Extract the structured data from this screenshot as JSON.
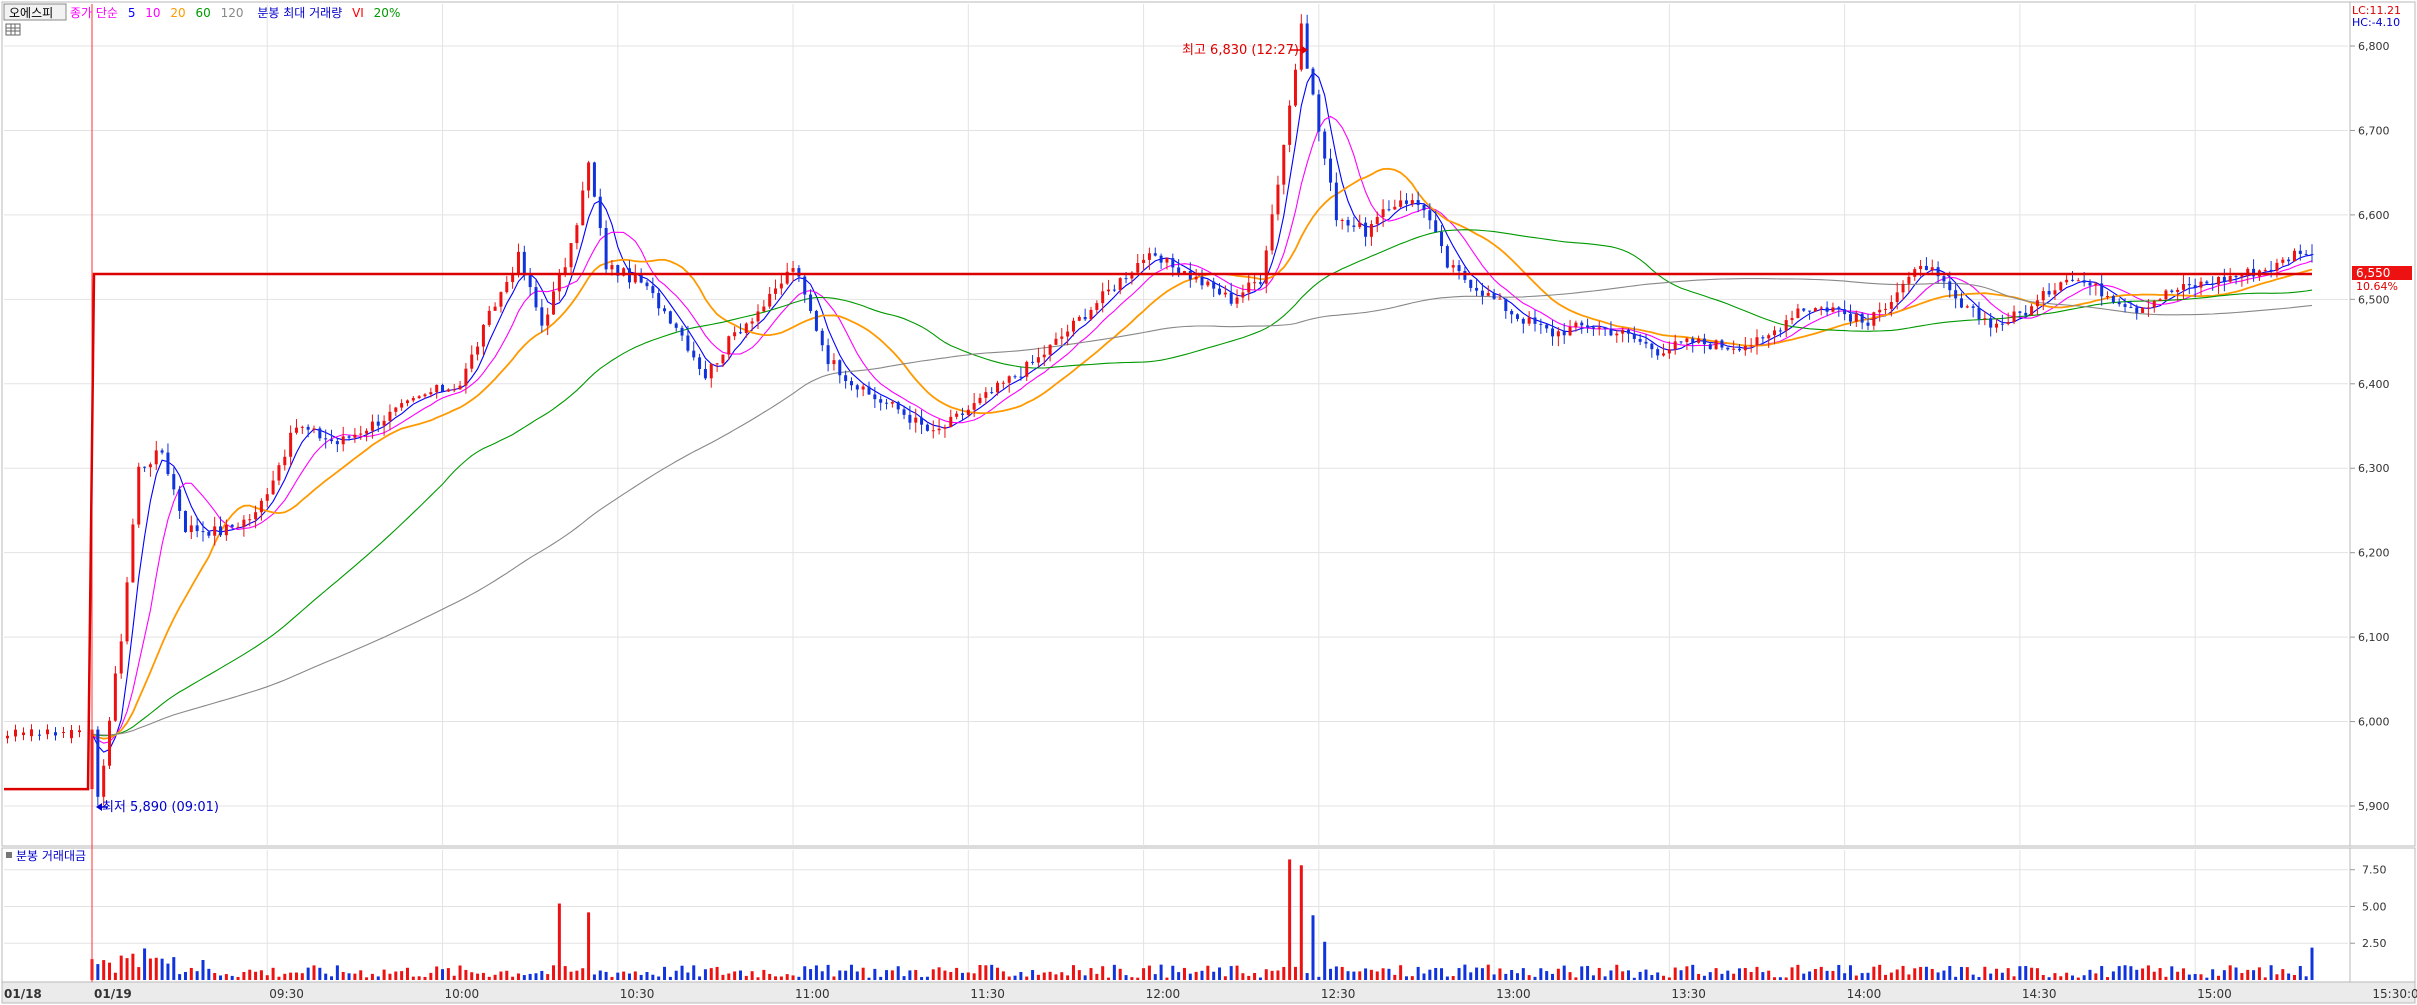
{
  "header": {
    "symbol": "오에스피",
    "ma_label": "종가 단순",
    "ma_periods": [
      "5",
      "10",
      "20",
      "60",
      "120"
    ],
    "ma_colors": [
      "#0000ff",
      "#ff00ff",
      "#ff9900",
      "#009900",
      "#888888"
    ],
    "volume_label": "분봉 최대 거래량",
    "vi_label": "VI",
    "vi_value": "20%"
  },
  "corner": {
    "lc": "LC:11.21",
    "hc": "HC:-4.10"
  },
  "current": {
    "price": "6,550",
    "change": "10.64%"
  },
  "annotations": {
    "high": "최고 6,830 (12:27)",
    "low": "최저 5,890 (09:01)"
  },
  "volume_panel": {
    "title": "분봉 거래대금",
    "ticks": [
      "7.50",
      "5.00",
      "2.50"
    ]
  },
  "x_axis": {
    "labels": [
      "01/18",
      "01/19",
      "09:30",
      "10:00",
      "10:30",
      "11:00",
      "11:30",
      "12:00",
      "12:30",
      "13:00",
      "13:30",
      "14:00",
      "14:30",
      "15:00",
      "15:30:00"
    ]
  },
  "chart_data": {
    "type": "candlestick",
    "title": "",
    "y_axis_ticks": [
      "6,800",
      "6,700",
      "6,600",
      "6,500",
      "6,400",
      "6,300",
      "6,200",
      "6,100",
      "6,000",
      "5,900"
    ],
    "ylim": [
      5860,
      6880
    ],
    "prev_close": 5920,
    "vi_price": 6530,
    "high": 6830,
    "low": 5890,
    "last": 6550,
    "price_path": [
      [
        "09:00",
        5985
      ],
      [
        "09:01",
        5905
      ],
      [
        "09:05",
        6100
      ],
      [
        "09:08",
        6300
      ],
      [
        "09:12",
        6320
      ],
      [
        "09:16",
        6230
      ],
      [
        "09:22",
        6225
      ],
      [
        "09:28",
        6245
      ],
      [
        "09:35",
        6350
      ],
      [
        "09:42",
        6330
      ],
      [
        "09:50",
        6360
      ],
      [
        "09:58",
        6390
      ],
      [
        "10:03",
        6400
      ],
      [
        "10:08",
        6480
      ],
      [
        "10:13",
        6550
      ],
      [
        "10:17",
        6470
      ],
      [
        "10:22",
        6560
      ],
      [
        "10:25",
        6660
      ],
      [
        "10:28",
        6540
      ],
      [
        "10:34",
        6520
      ],
      [
        "10:40",
        6470
      ],
      [
        "10:45",
        6410
      ],
      [
        "10:50",
        6460
      ],
      [
        "10:56",
        6500
      ],
      [
        "11:00",
        6540
      ],
      [
        "11:06",
        6430
      ],
      [
        "11:12",
        6390
      ],
      [
        "11:18",
        6370
      ],
      [
        "11:24",
        6340
      ],
      [
        "11:30",
        6370
      ],
      [
        "11:36",
        6400
      ],
      [
        "11:42",
        6430
      ],
      [
        "11:48",
        6470
      ],
      [
        "11:54",
        6510
      ],
      [
        "12:00",
        6550
      ],
      [
        "12:05",
        6540
      ],
      [
        "12:10",
        6520
      ],
      [
        "12:15",
        6500
      ],
      [
        "12:20",
        6525
      ],
      [
        "12:23",
        6640
      ],
      [
        "12:27",
        6820
      ],
      [
        "12:30",
        6700
      ],
      [
        "12:33",
        6600
      ],
      [
        "12:38",
        6580
      ],
      [
        "12:44",
        6620
      ],
      [
        "12:48",
        6610
      ],
      [
        "12:52",
        6540
      ],
      [
        "12:58",
        6510
      ],
      [
        "13:04",
        6480
      ],
      [
        "13:10",
        6460
      ],
      [
        "13:16",
        6470
      ],
      [
        "13:22",
        6460
      ],
      [
        "13:28",
        6440
      ],
      [
        "13:34",
        6450
      ],
      [
        "13:40",
        6445
      ],
      [
        "13:46",
        6450
      ],
      [
        "13:52",
        6490
      ],
      [
        "13:58",
        6490
      ],
      [
        "14:04",
        6470
      ],
      [
        "14:10",
        6520
      ],
      [
        "14:14",
        6540
      ],
      [
        "14:20",
        6490
      ],
      [
        "14:26",
        6470
      ],
      [
        "14:32",
        6490
      ],
      [
        "14:38",
        6530
      ],
      [
        "14:44",
        6510
      ],
      [
        "14:50",
        6490
      ],
      [
        "14:56",
        6510
      ],
      [
        "15:02",
        6520
      ],
      [
        "15:08",
        6530
      ],
      [
        "15:14",
        6540
      ],
      [
        "15:18",
        6560
      ],
      [
        "15:20",
        6550
      ]
    ],
    "volume_ylim": [
      0,
      8.5
    ],
    "volume_ticks": [
      7.5,
      5.0,
      2.5
    ],
    "volume_spikes": [
      [
        "10:20",
        5.2
      ],
      [
        "10:25",
        4.6
      ],
      [
        "12:25",
        8.2
      ],
      [
        "12:27",
        7.8
      ],
      [
        "12:29",
        4.4
      ],
      [
        "12:31",
        2.6
      ],
      [
        "15:20",
        2.2
      ]
    ],
    "grid": true
  }
}
